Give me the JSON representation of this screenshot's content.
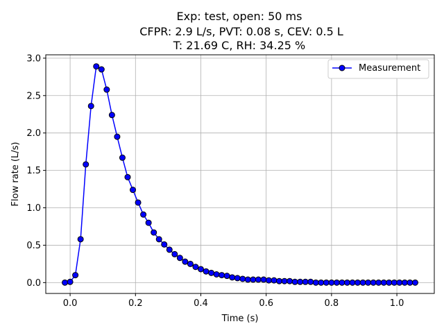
{
  "chart_data": {
    "type": "line",
    "title_lines": [
      "Exp: test, open: 50 ms",
      "CFPR: 2.9 L/s, PVT: 0.08 s, CEV: 0.5 L",
      "T: 21.69 C, RH: 34.25 %"
    ],
    "xlabel": "Time (s)",
    "ylabel": "Flow rate (L/s)",
    "xlim": [
      -0.0745,
      1.1145
    ],
    "ylim": [
      -0.145,
      3.045
    ],
    "xticks": [
      0.0,
      0.2,
      0.4,
      0.6,
      0.8,
      1.0
    ],
    "xtick_labels": [
      "0.0",
      "0.2",
      "0.4",
      "0.6",
      "0.8",
      "1.0"
    ],
    "yticks": [
      0.0,
      0.5,
      1.0,
      1.5,
      2.0,
      2.5,
      3.0
    ],
    "ytick_labels": [
      "0.0",
      "0.5",
      "1.0",
      "1.5",
      "2.0",
      "2.5",
      "3.0"
    ],
    "grid": true,
    "legend_position": "top-right",
    "series": [
      {
        "name": "Measurement",
        "color": "#0000ff",
        "marker_edge_color": "#000000",
        "x": [
          -0.016,
          0.0,
          0.016,
          0.032,
          0.048,
          0.064,
          0.08,
          0.096,
          0.112,
          0.128,
          0.144,
          0.16,
          0.176,
          0.192,
          0.208,
          0.224,
          0.24,
          0.256,
          0.272,
          0.288,
          0.304,
          0.32,
          0.336,
          0.352,
          0.368,
          0.384,
          0.4,
          0.416,
          0.432,
          0.448,
          0.464,
          0.48,
          0.496,
          0.512,
          0.528,
          0.544,
          0.56,
          0.576,
          0.592,
          0.608,
          0.624,
          0.64,
          0.656,
          0.672,
          0.688,
          0.704,
          0.72,
          0.736,
          0.752,
          0.768,
          0.784,
          0.8,
          0.816,
          0.832,
          0.848,
          0.864,
          0.88,
          0.896,
          0.912,
          0.928,
          0.944,
          0.96,
          0.976,
          0.992,
          1.008,
          1.024,
          1.04,
          1.056
        ],
        "y": [
          0.0,
          0.01,
          0.1,
          0.58,
          1.58,
          2.36,
          2.89,
          2.85,
          2.58,
          2.24,
          1.95,
          1.67,
          1.41,
          1.24,
          1.07,
          0.91,
          0.8,
          0.67,
          0.58,
          0.51,
          0.44,
          0.38,
          0.33,
          0.28,
          0.25,
          0.21,
          0.18,
          0.15,
          0.13,
          0.11,
          0.1,
          0.09,
          0.07,
          0.06,
          0.05,
          0.04,
          0.04,
          0.04,
          0.04,
          0.03,
          0.03,
          0.02,
          0.02,
          0.02,
          0.01,
          0.01,
          0.01,
          0.01,
          0.0,
          0.0,
          0.0,
          0.0,
          0.0,
          0.0,
          0.0,
          0.0,
          0.0,
          0.0,
          0.0,
          0.0,
          0.0,
          0.0,
          0.0,
          0.0,
          0.0,
          0.0,
          0.0,
          0.0
        ]
      }
    ]
  }
}
